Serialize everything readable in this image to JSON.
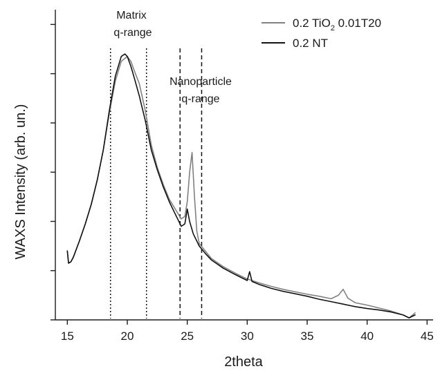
{
  "chart_data": {
    "type": "line",
    "xlabel": "2theta",
    "ylabel": "WAXS Intensity (arb. un.)",
    "xlim": [
      14,
      45.5
    ],
    "ylim": [
      0.2,
      6.5
    ],
    "x_ticks": [
      15,
      20,
      25,
      30,
      35,
      40,
      45
    ],
    "y_ticks": [
      0.2,
      1.2,
      2.2,
      3.2,
      4.2,
      5.2,
      6.2
    ],
    "y_tick_labels_shown": false,
    "grid": false,
    "legend_position": "top-right",
    "legend": {
      "entry1": {
        "main": "0.2 TiO",
        "sub": "2",
        "rest": " 0.01T20"
      },
      "entry2": {
        "text": "0.2 NT"
      }
    },
    "annotations": {
      "matrix_line1": "Matrix",
      "matrix_line2": "q-range",
      "nano_line1": "Nanoparticle",
      "nano_line2": "q-range"
    },
    "reference_lines": [
      {
        "x": 18.6,
        "style": "dotted"
      },
      {
        "x": 21.6,
        "style": "dotted"
      },
      {
        "x": 24.4,
        "style": "dashed"
      },
      {
        "x": 26.2,
        "style": "dashed"
      }
    ],
    "series": [
      {
        "name": "0.2 TiO2 0.01T20",
        "color": "#808080",
        "x": [
          15.0,
          15.1,
          15.3,
          15.5,
          16.0,
          16.5,
          17.0,
          17.5,
          18.0,
          18.5,
          19.0,
          19.5,
          20.0,
          20.3,
          20.6,
          21.0,
          21.5,
          22.0,
          22.5,
          23.0,
          23.5,
          24.0,
          24.5,
          24.8,
          25.0,
          25.2,
          25.4,
          25.6,
          25.8,
          26.0,
          26.5,
          27.0,
          28.0,
          29.0,
          30.0,
          31.0,
          32.0,
          33.0,
          34.0,
          35.0,
          36.0,
          37.0,
          37.6,
          38.0,
          38.4,
          39.0,
          40.0,
          41.0,
          42.0,
          43.0,
          43.5,
          44.0
        ],
        "y": [
          1.6,
          1.35,
          1.38,
          1.48,
          1.8,
          2.15,
          2.55,
          3.05,
          3.65,
          4.4,
          5.05,
          5.45,
          5.55,
          5.45,
          5.25,
          5.0,
          4.45,
          3.75,
          3.3,
          2.95,
          2.65,
          2.45,
          2.25,
          2.3,
          2.6,
          3.2,
          3.6,
          2.7,
          2.0,
          1.75,
          1.6,
          1.45,
          1.28,
          1.15,
          1.03,
          0.95,
          0.88,
          0.82,
          0.77,
          0.72,
          0.68,
          0.63,
          0.7,
          0.82,
          0.64,
          0.55,
          0.5,
          0.44,
          0.38,
          0.3,
          0.24,
          0.34
        ]
      },
      {
        "name": "0.2 NT",
        "color": "#111111",
        "x": [
          15.0,
          15.1,
          15.3,
          15.5,
          16.0,
          16.5,
          17.0,
          17.5,
          18.0,
          18.5,
          19.0,
          19.5,
          19.8,
          20.0,
          20.3,
          20.6,
          21.0,
          21.5,
          22.0,
          22.5,
          23.0,
          23.5,
          24.0,
          24.5,
          24.8,
          25.0,
          25.2,
          25.5,
          26.0,
          26.5,
          27.0,
          28.0,
          29.0,
          30.0,
          30.2,
          30.4,
          31.0,
          32.0,
          33.0,
          34.0,
          35.0,
          36.0,
          37.0,
          38.0,
          39.0,
          40.0,
          41.0,
          42.0,
          43.0,
          43.5,
          44.0
        ],
        "y": [
          1.6,
          1.35,
          1.38,
          1.47,
          1.8,
          2.15,
          2.55,
          3.05,
          3.65,
          4.45,
          5.15,
          5.55,
          5.6,
          5.55,
          5.35,
          5.1,
          4.75,
          4.25,
          3.65,
          3.25,
          2.9,
          2.6,
          2.35,
          2.1,
          2.15,
          2.45,
          2.2,
          1.95,
          1.7,
          1.55,
          1.42,
          1.25,
          1.12,
          1.0,
          1.18,
          0.98,
          0.92,
          0.84,
          0.78,
          0.73,
          0.68,
          0.62,
          0.57,
          0.52,
          0.47,
          0.43,
          0.4,
          0.36,
          0.3,
          0.24,
          0.3
        ]
      }
    ]
  }
}
